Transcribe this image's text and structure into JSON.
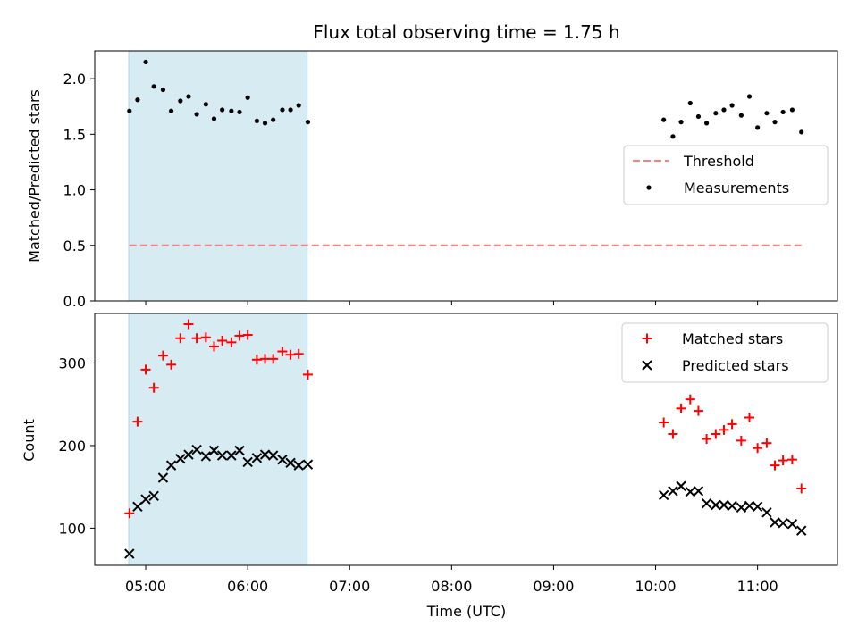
{
  "chart_data": {
    "type": "scatter",
    "title": "Flux total observing time = 1.75 h",
    "xlabel": "Time (UTC)",
    "x_ticks": [
      "05:00",
      "06:00",
      "07:00",
      "08:00",
      "09:00",
      "10:00",
      "11:00"
    ],
    "x_tick_values": [
      5.0,
      6.0,
      7.0,
      8.0,
      9.0,
      10.0,
      11.0
    ],
    "xlim": [
      "04:30",
      "11:47"
    ],
    "x_unit": "hours UTC",
    "highlight_span": {
      "from": "04:50",
      "to": "06:35",
      "color": "#add8e6"
    },
    "panels": [
      {
        "id": "ratio",
        "ylabel": "Matched/Predicted stars",
        "ylim": [
          0.0,
          2.25
        ],
        "y_ticks": [
          "0.0",
          "0.5",
          "1.0",
          "1.5",
          "2.0"
        ],
        "y_tick_values": [
          0.0,
          0.5,
          1.0,
          1.5,
          2.0
        ],
        "legend": {
          "placement": "center-right",
          "entries": [
            "Threshold",
            "Measurements"
          ]
        },
        "series": [
          {
            "name": "Threshold",
            "style": "dashed-line",
            "color": "#ff7f7f",
            "x": [
              4.84,
              11.43
            ],
            "y": [
              0.5,
              0.5
            ]
          },
          {
            "name": "Measurements",
            "style": "dot",
            "color": "#000000",
            "x": [
              4.84,
              4.92,
              5.0,
              5.08,
              5.17,
              5.25,
              5.34,
              5.42,
              5.5,
              5.59,
              5.67,
              5.75,
              5.84,
              5.92,
              6.0,
              6.09,
              6.17,
              6.25,
              6.34,
              6.42,
              6.5,
              6.59,
              10.08,
              10.17,
              10.25,
              10.34,
              10.42,
              10.5,
              10.59,
              10.67,
              10.75,
              10.84,
              10.92,
              11.0,
              11.09,
              11.17,
              11.25,
              11.34,
              11.43
            ],
            "y": [
              1.71,
              1.81,
              2.15,
              1.93,
              1.9,
              1.71,
              1.8,
              1.84,
              1.68,
              1.77,
              1.64,
              1.72,
              1.71,
              1.7,
              1.83,
              1.62,
              1.6,
              1.63,
              1.72,
              1.72,
              1.76,
              1.61,
              1.63,
              1.48,
              1.61,
              1.78,
              1.66,
              1.6,
              1.69,
              1.72,
              1.76,
              1.67,
              1.84,
              1.56,
              1.69,
              1.61,
              1.7,
              1.72,
              1.52
            ]
          }
        ]
      },
      {
        "id": "count",
        "ylabel": "Count",
        "ylim": [
          55,
          360
        ],
        "y_ticks": [
          "100",
          "200",
          "300"
        ],
        "y_tick_values": [
          100,
          200,
          300
        ],
        "legend": {
          "placement": "top-right",
          "entries": [
            "Matched stars",
            "Predicted stars"
          ]
        },
        "series": [
          {
            "name": "Matched stars",
            "style": "plus",
            "color": "#ff0000",
            "x": [
              4.84,
              4.92,
              5.0,
              5.08,
              5.17,
              5.25,
              5.34,
              5.42,
              5.5,
              5.59,
              5.67,
              5.75,
              5.84,
              5.92,
              6.0,
              6.09,
              6.17,
              6.25,
              6.34,
              6.42,
              6.5,
              6.59,
              10.08,
              10.17,
              10.25,
              10.34,
              10.42,
              10.5,
              10.59,
              10.67,
              10.75,
              10.84,
              10.92,
              11.0,
              11.09,
              11.17,
              11.25,
              11.34,
              11.43
            ],
            "y": [
              118,
              229,
              292,
              270,
              309,
              298,
              330,
              347,
              330,
              331,
              320,
              327,
              325,
              333,
              334,
              304,
              305,
              305,
              314,
              310,
              311,
              286,
              228,
              214,
              245,
              256,
              242,
              208,
              214,
              219,
              226,
              206,
              234,
              197,
              203,
              176,
              182,
              183,
              148
            ]
          },
          {
            "name": "Predicted stars",
            "style": "x",
            "color": "#000000",
            "x": [
              4.84,
              4.92,
              5.0,
              5.08,
              5.17,
              5.25,
              5.34,
              5.42,
              5.5,
              5.59,
              5.67,
              5.75,
              5.84,
              5.92,
              6.0,
              6.09,
              6.17,
              6.25,
              6.34,
              6.42,
              6.5,
              6.59,
              10.08,
              10.17,
              10.25,
              10.34,
              10.42,
              10.5,
              10.59,
              10.67,
              10.75,
              10.84,
              10.92,
              11.0,
              11.09,
              11.17,
              11.25,
              11.34,
              11.43
            ],
            "y": [
              69,
              126,
              135,
              139,
              161,
              176,
              184,
              189,
              195,
              187,
              194,
              188,
              188,
              194,
              180,
              185,
              189,
              188,
              183,
              179,
              176,
              177,
              140,
              145,
              151,
              144,
              145,
              130,
              128,
              128,
              127,
              125,
              127,
              126,
              119,
              107,
              106,
              105,
              97
            ]
          }
        ]
      }
    ]
  }
}
